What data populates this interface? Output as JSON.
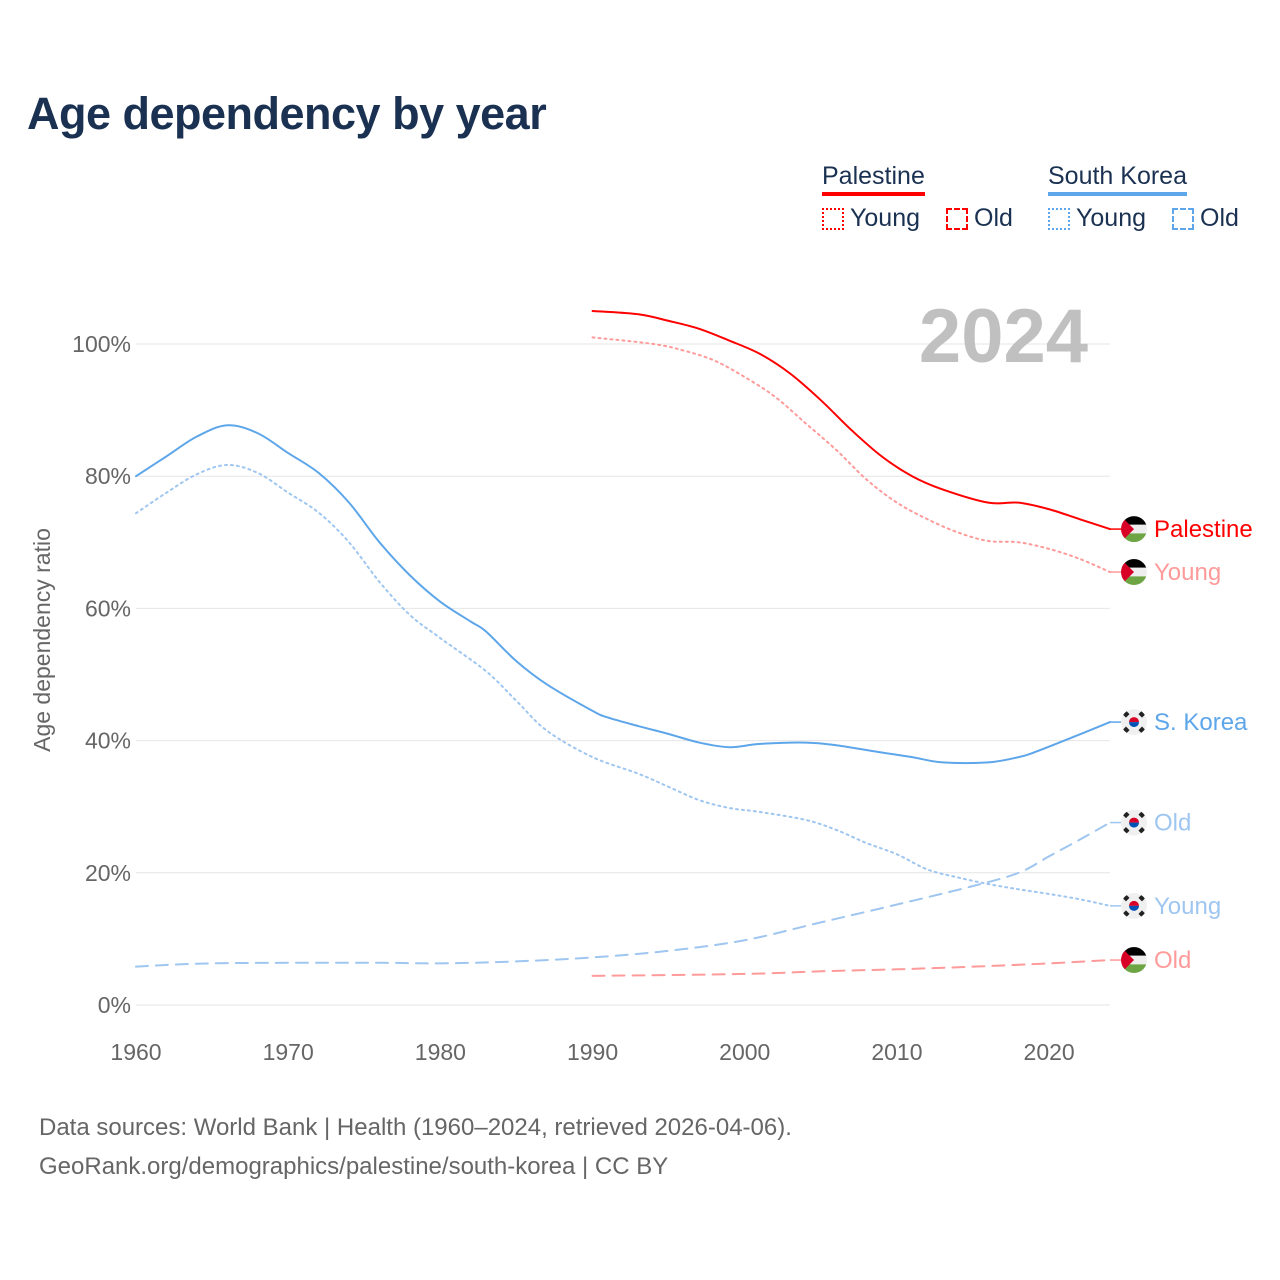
{
  "title": "Age dependency by year",
  "legend": {
    "groups": [
      {
        "name": "Palestine",
        "color": "#ff0000",
        "young": "Young",
        "old": "Old"
      },
      {
        "name": "South Korea",
        "color": "#5ea6ea",
        "young": "Young",
        "old": "Old"
      }
    ]
  },
  "year_watermark": "2024",
  "footer": {
    "line1": "Data sources: World Bank | Health (1960–2024, retrieved 2026-04-06).",
    "line2": "GeoRank.org/demographics/palestine/south-korea | CC BY"
  },
  "chart_data": {
    "type": "line",
    "title": "Age dependency by year",
    "xlabel": "",
    "ylabel": "Age dependency ratio",
    "xlim": [
      1960,
      2024
    ],
    "ylim": [
      0,
      105
    ],
    "x_ticks": [
      1960,
      1970,
      1980,
      1990,
      2000,
      2010,
      2020
    ],
    "x_tick_labels": [
      "1960",
      "1970",
      "1980",
      "1990",
      "2000",
      "2010",
      "2020"
    ],
    "y_ticks": [
      0,
      20,
      40,
      60,
      80,
      100
    ],
    "y_tick_labels": [
      "0%",
      "20%",
      "40%",
      "60%",
      "80%",
      "100%"
    ],
    "grid": true,
    "legend_position": "top-right",
    "series": [
      {
        "name": "South Korea total",
        "end_label": "S. Korea",
        "flag": "korea",
        "color": "#5ea6ea",
        "dash": "solid",
        "x": [
          1960,
          1962,
          1964,
          1966,
          1968,
          1970,
          1972,
          1974,
          1976,
          1978,
          1980,
          1982,
          1983,
          1985,
          1987,
          1990,
          1991,
          1993,
          1995,
          1997,
          1999,
          2001,
          2004,
          2006,
          2009,
          2011,
          2013,
          2016,
          2018,
          2019,
          2021,
          2024
        ],
        "y": [
          80,
          83,
          86,
          87.7,
          86.5,
          83.5,
          80.5,
          76,
          70,
          65,
          61,
          58,
          56.5,
          52,
          48.5,
          44.5,
          43.5,
          42.2,
          41,
          39.7,
          39,
          39.5,
          39.7,
          39.3,
          38.2,
          37.5,
          36.7,
          36.7,
          37.5,
          38.2,
          40,
          42.8
        ]
      },
      {
        "name": "South Korea young",
        "end_label": "Young",
        "flag": "korea",
        "color": "#9fc6f0",
        "dash": "dotted",
        "x": [
          1960,
          1962,
          1964,
          1966,
          1968,
          1970,
          1972,
          1974,
          1976,
          1978,
          1980,
          1983,
          1985,
          1987,
          1990,
          1993,
          1995,
          1997,
          1999,
          2001,
          2004,
          2006,
          2008,
          2010,
          2012,
          2014,
          2016,
          2018,
          2020,
          2022,
          2024
        ],
        "y": [
          74.4,
          77.5,
          80.3,
          81.7,
          80.5,
          77.5,
          74.5,
          70,
          64,
          59,
          55.5,
          50.5,
          46,
          41.5,
          37.5,
          35,
          33,
          31,
          29.8,
          29.2,
          28,
          26.5,
          24.5,
          22.8,
          20.5,
          19.3,
          18.3,
          17.5,
          16.8,
          16,
          15
        ]
      },
      {
        "name": "South Korea old",
        "end_label": "Old",
        "flag": "korea",
        "color": "#9fc6f0",
        "dash": "dashed",
        "x": [
          1960,
          1965,
          1975,
          1980,
          1985,
          1990,
          1995,
          2000,
          2005,
          2010,
          2015,
          2018,
          2020,
          2022,
          2024
        ],
        "y": [
          5.8,
          6.3,
          6.4,
          6.3,
          6.6,
          7.2,
          8.2,
          9.8,
          12.5,
          15.2,
          18,
          20,
          22.5,
          25,
          27.6
        ]
      },
      {
        "name": "Palestine total",
        "end_label": "Palestine",
        "flag": "palestine",
        "color": "#ff0000",
        "dash": "solid",
        "x": [
          1990,
          1993,
          1995,
          1997,
          1999,
          2001,
          2003,
          2005,
          2007,
          2009,
          2011,
          2013,
          2016,
          2018,
          2020,
          2022,
          2024
        ],
        "y": [
          105,
          104.5,
          103.5,
          102.3,
          100.5,
          98.5,
          95.5,
          91.5,
          87,
          83,
          80,
          78,
          76,
          76,
          75,
          73.5,
          72
        ]
      },
      {
        "name": "Palestine young",
        "end_label": "Young",
        "flag": "palestine",
        "color": "#ff9a9a",
        "dash": "dotted",
        "x": [
          1990,
          1994,
          1996,
          1998,
          2000,
          2002,
          2004,
          2006,
          2008,
          2010,
          2012,
          2014,
          2016,
          2018,
          2020,
          2022,
          2024
        ],
        "y": [
          101,
          100,
          99,
          97.5,
          95,
          92,
          88,
          84,
          79.5,
          76,
          73.5,
          71.5,
          70.2,
          70,
          69,
          67.5,
          65.5
        ]
      },
      {
        "name": "Palestine old",
        "end_label": "Old",
        "flag": "palestine",
        "color": "#ff9a9a",
        "dash": "dashed",
        "x": [
          1990,
          2000,
          2005,
          2010,
          2015,
          2020,
          2024
        ],
        "y": [
          4.4,
          4.7,
          5.1,
          5.4,
          5.8,
          6.3,
          6.8
        ]
      }
    ]
  }
}
